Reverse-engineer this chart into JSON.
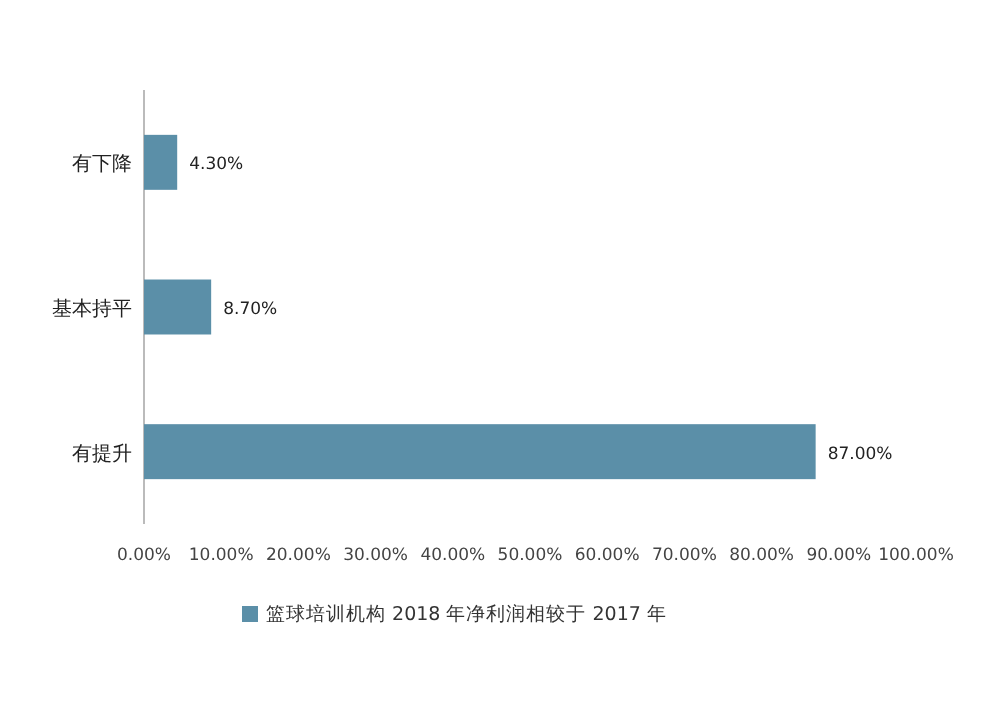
{
  "chart_data": {
    "type": "bar",
    "orientation": "horizontal",
    "categories": [
      "有下降",
      "基本持平",
      "有提升"
    ],
    "series": [
      {
        "name": "篮球培训机构 2018 年净利润相较于 2017 年",
        "color": "#5b8fa8",
        "values": [
          4.3,
          8.7,
          87.0
        ],
        "value_labels": [
          "4.30%",
          "8.70%",
          "87.00%"
        ]
      }
    ],
    "xlim": [
      0,
      100
    ],
    "xticks": [
      {
        "value": 0,
        "label": "0.00%"
      },
      {
        "value": 10,
        "label": "10.00%"
      },
      {
        "value": 20,
        "label": "20.00%"
      },
      {
        "value": 30,
        "label": "30.00%"
      },
      {
        "value": 40,
        "label": "40.00%"
      },
      {
        "value": 50,
        "label": "50.00%"
      },
      {
        "value": 60,
        "label": "60.00%"
      },
      {
        "value": 70,
        "label": "70.00%"
      },
      {
        "value": 80,
        "label": "80.00%"
      },
      {
        "value": 90,
        "label": "90.00%"
      },
      {
        "value": 100,
        "label": "100.00%"
      }
    ],
    "legend": "bottom"
  }
}
